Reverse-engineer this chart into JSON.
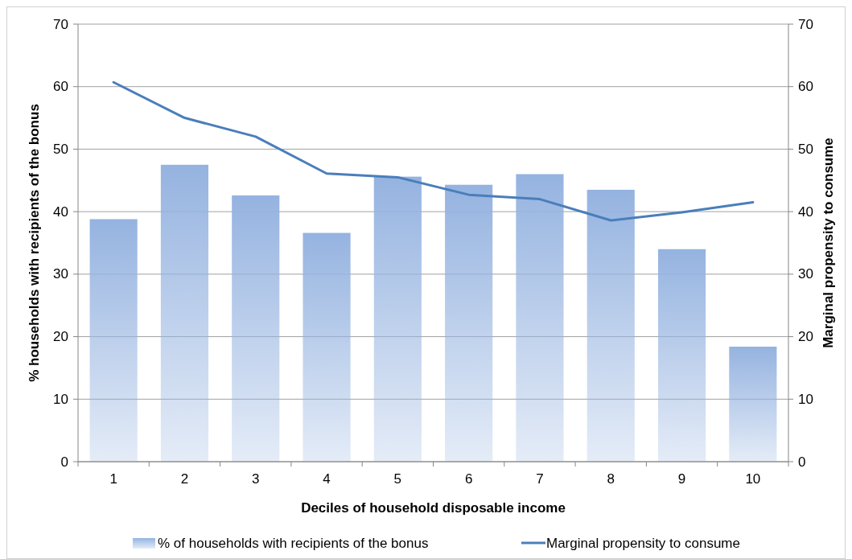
{
  "chart_data": {
    "type": "bar",
    "xlabel": "Deciles of household disposable income",
    "ylabel": "% households with recipients of the bonus",
    "y2label": "Marginal propensity to consume",
    "categories": [
      "1",
      "2",
      "3",
      "4",
      "5",
      "6",
      "7",
      "8",
      "9",
      "10"
    ],
    "series": [
      {
        "name": "% of households with recipients of the bonus",
        "color": "#95b3e0",
        "values": [
          38.8,
          47.5,
          42.6,
          36.6,
          45.6,
          44.3,
          46.0,
          43.5,
          34.0,
          18.4
        ]
      },
      {
        "name": "Marginal propensity to consume",
        "type": "line",
        "axis": "y2",
        "color": "#4a7ebb",
        "values": [
          60.7,
          55.0,
          52.0,
          46.1,
          45.5,
          42.7,
          42.0,
          38.6,
          39.9,
          41.5
        ]
      }
    ],
    "ylim": [
      0,
      70
    ],
    "yticks": [
      0,
      10,
      20,
      30,
      40,
      50,
      60,
      70
    ],
    "y2lim": [
      0,
      70
    ],
    "y2ticks": [
      0,
      10,
      20,
      30,
      40,
      50,
      60,
      70
    ],
    "grid": "y",
    "legend": "bottom"
  }
}
